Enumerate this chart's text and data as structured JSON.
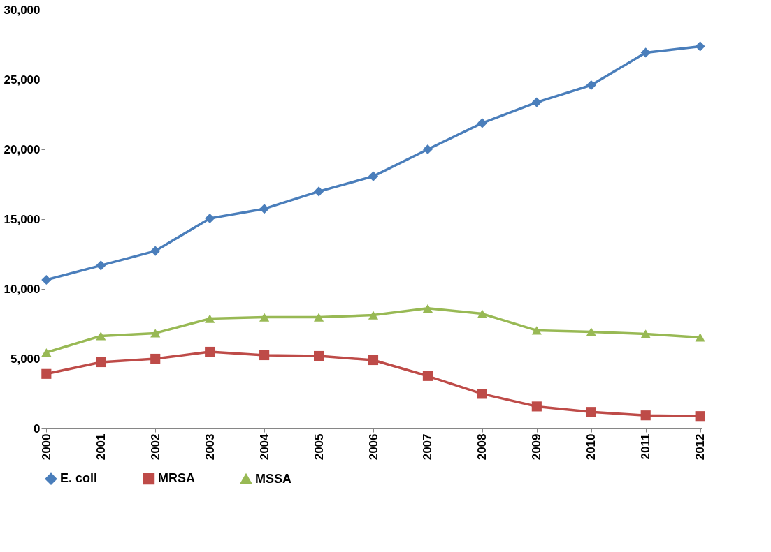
{
  "chart_data": {
    "type": "line",
    "categories": [
      "2000",
      "2001",
      "2002",
      "2003",
      "2004",
      "2005",
      "2006",
      "2007",
      "2008",
      "2009",
      "2010",
      "2011",
      "2012"
    ],
    "series": [
      {
        "name": "E. coli",
        "color": "#4a7ebb",
        "marker": "diamond",
        "values": [
          10650,
          11680,
          12720,
          15050,
          15740,
          16980,
          18070,
          20000,
          21880,
          23370,
          24600,
          26930,
          27380
        ]
      },
      {
        "name": "MRSA",
        "color": "#be4b48",
        "marker": "square",
        "values": [
          3910,
          4750,
          5000,
          5500,
          5250,
          5200,
          4900,
          3760,
          2480,
          1580,
          1190,
          940,
          890
        ]
      },
      {
        "name": "MSSA",
        "color": "#98b954",
        "marker": "triangle",
        "values": [
          5450,
          6630,
          6830,
          7870,
          7970,
          7970,
          8120,
          8610,
          8220,
          7030,
          6930,
          6780,
          6530
        ]
      }
    ],
    "ylim": [
      0,
      30000
    ],
    "yticks": [
      0,
      {
        "value": 5000,
        "label": "5,000"
      },
      {
        "value": 10000,
        "label": "10,000"
      },
      {
        "value": 15000,
        "label": "15,000"
      },
      {
        "value": 20000,
        "label": "20,000"
      },
      {
        "value": 25000,
        "label": "25,000"
      },
      {
        "value": 30000,
        "label": "30,000"
      }
    ],
    "grid": false,
    "legend": "bottom",
    "line_style": "solid"
  }
}
